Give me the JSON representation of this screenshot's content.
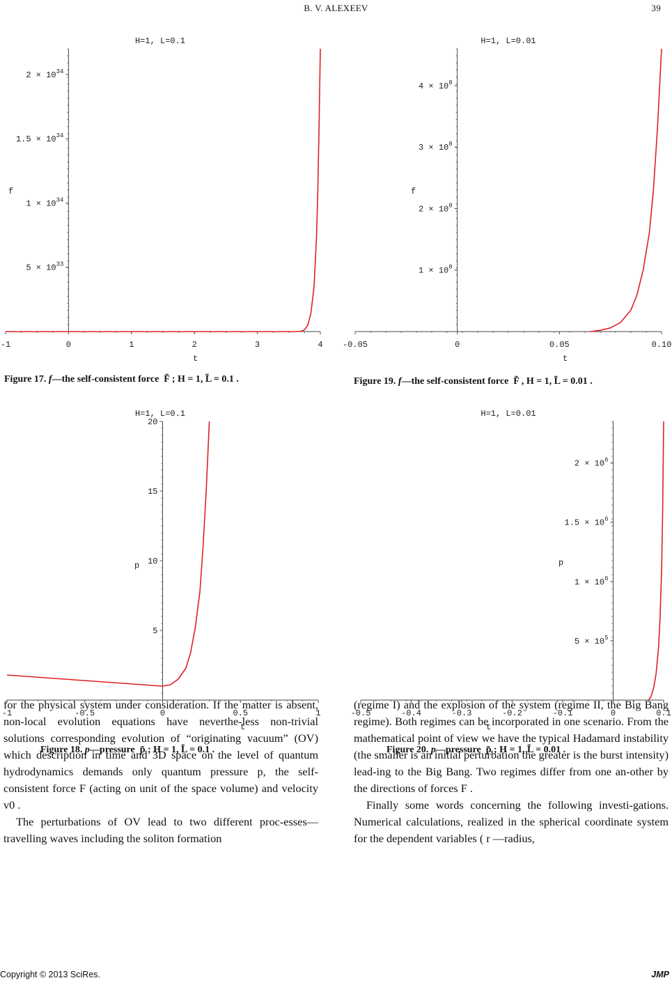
{
  "header": {
    "author": "B. V. ALEXEEV",
    "page_number": "39"
  },
  "chart_data": [
    {
      "id": "fig17",
      "type": "line",
      "title": "H=1, L=0.1",
      "xlabel": "t",
      "ylabel": "f",
      "xlim": [
        -1,
        4
      ],
      "ylim": [
        0,
        2.2e+34
      ],
      "x_ticks": [
        "-1",
        "0",
        "1",
        "2",
        "3",
        "4"
      ],
      "y_ticks": [
        "5 × 10^33",
        "1 × 10^34",
        "1.5 × 10^34",
        "2 × 10^34"
      ],
      "color": "#e02020",
      "series": [
        {
          "x": [
            -1,
            3.6,
            3.7,
            3.75,
            3.8,
            3.85,
            3.9,
            3.94,
            3.96,
            3.98,
            4.0
          ],
          "y": [
            0,
            0,
            3e+31,
            1.5e+32,
            5e+32,
            1.4e+33,
            3.5e+33,
            7.5e+33,
            1.1e+34,
            1.6e+34,
            2.2e+34
          ]
        }
      ],
      "caption": {
        "label": "Figure 17.",
        "symbol": "f",
        "text": "—the self-consistent force",
        "params": "F̃ ;   H = 1,   L̃ = 0.1 ."
      }
    },
    {
      "id": "fig19",
      "type": "line",
      "title": "H=1, L=0.01",
      "xlabel": "t",
      "ylabel": "f",
      "xlim": [
        -0.05,
        0.1
      ],
      "ylim": [
        0,
        460000000.0
      ],
      "x_ticks": [
        "-0.05",
        "0",
        "0.05",
        "0.10"
      ],
      "y_ticks": [
        "1 × 10^8",
        "2 × 10^8",
        "3 × 10^8",
        "4 × 10^8"
      ],
      "color": "#e02020",
      "series": [
        {
          "x": [
            0.065,
            0.07,
            0.075,
            0.08,
            0.085,
            0.088,
            0.091,
            0.094,
            0.096,
            0.098,
            0.1
          ],
          "y": [
            0,
            2000000.0,
            6000000.0,
            15000000.0,
            35000000.0,
            60000000.0,
            100000000.0,
            160000000.0,
            230000000.0,
            330000000.0,
            460000000.0
          ]
        }
      ],
      "caption": {
        "label": "Figure 19.",
        "symbol": "f",
        "text": "—the self-consistent force",
        "params": "F̃ , H = 1,   L̃ = 0.01 ."
      }
    },
    {
      "id": "fig18",
      "type": "line",
      "title": "H=1, L=0.1",
      "xlabel": "t",
      "ylabel": "p",
      "xlim": [
        -1,
        1
      ],
      "ylim": [
        0,
        20
      ],
      "x_ticks": [
        "-1",
        "-0.5",
        "0",
        "0.5",
        "1"
      ],
      "y_ticks": [
        "5",
        "10",
        "15",
        "20"
      ],
      "color": "#e02020",
      "series": [
        {
          "x": [
            -1,
            -0.5,
            0,
            0.05,
            0.1,
            0.15,
            0.18,
            0.21,
            0.24,
            0.26,
            0.28,
            0.3
          ],
          "y": [
            1.8,
            1.4,
            1.0,
            1.1,
            1.5,
            2.3,
            3.4,
            5.2,
            7.8,
            11,
            15,
            20
          ]
        }
      ],
      "caption": {
        "label": "Figure 18.",
        "symbol": "p",
        "text": "—pressure",
        "params": "p̃ ;   H = 1,   L̃ = 0.1 ."
      }
    },
    {
      "id": "fig20",
      "type": "line",
      "title": "H=1, L=0.01",
      "xlabel": "t",
      "ylabel": "p",
      "xlim": [
        -0.5,
        0.1
      ],
      "ylim": [
        0,
        2350000.0
      ],
      "x_ticks": [
        "-0.5",
        "-0.4",
        "-0.3",
        "-0.2",
        "-0.1",
        "0",
        "0.1"
      ],
      "y_ticks": [
        "5 × 10^5",
        "1 × 10^6",
        "1.5 × 10^6",
        "2 × 10^6"
      ],
      "color": "#e02020",
      "series": [
        {
          "x": [
            0.07,
            0.075,
            0.08,
            0.085,
            0.09,
            0.093,
            0.096,
            0.098,
            0.1
          ],
          "y": [
            0,
            30000.0,
            100000.0,
            220000.0,
            450000.0,
            700000.0,
            1100000.0,
            1600000.0,
            2350000.0
          ]
        }
      ],
      "caption": {
        "label": "Figure 20.",
        "symbol": "p",
        "text": "—pressure",
        "params": "p̃ ;   H = 1,   L̃ = 0.01 ."
      }
    }
  ],
  "body": {
    "left_p1": "for the physical system under consideration. If the matter is absent, non-local evolution equations have neverthe-less non-trivial solutions corresponding evolution of “originating vacuum” (OV) which description in time and 3D space on the level of quantum hydrodynamics demands only quantum pressure p, the self-consistent force F (acting on unit of the space volume) and velocity v0 .",
    "left_p2": "The perturbations of OV lead to two different proc-esses—travelling waves including the soliton formation",
    "right_p1": "(regime I) and the explosion of the system (regime II, the Big Bang regime). Both regimes can be incorporated in one scenario. From the mathematical point of view we have the typical Hadamard instability (the smaller is an initial perturbation the greater is the burst intensity) lead-ing to the Big Bang. Two regimes differ from one an-other by the directions of forces  F .",
    "right_p2": "Finally some words concerning the following investi-gations. Numerical calculations, realized in the spherical coordinate system for the dependent variables ( r —radius,"
  },
  "footer": {
    "copyright": "Copyright © 2013 SciRes.",
    "journal": "JMP"
  }
}
